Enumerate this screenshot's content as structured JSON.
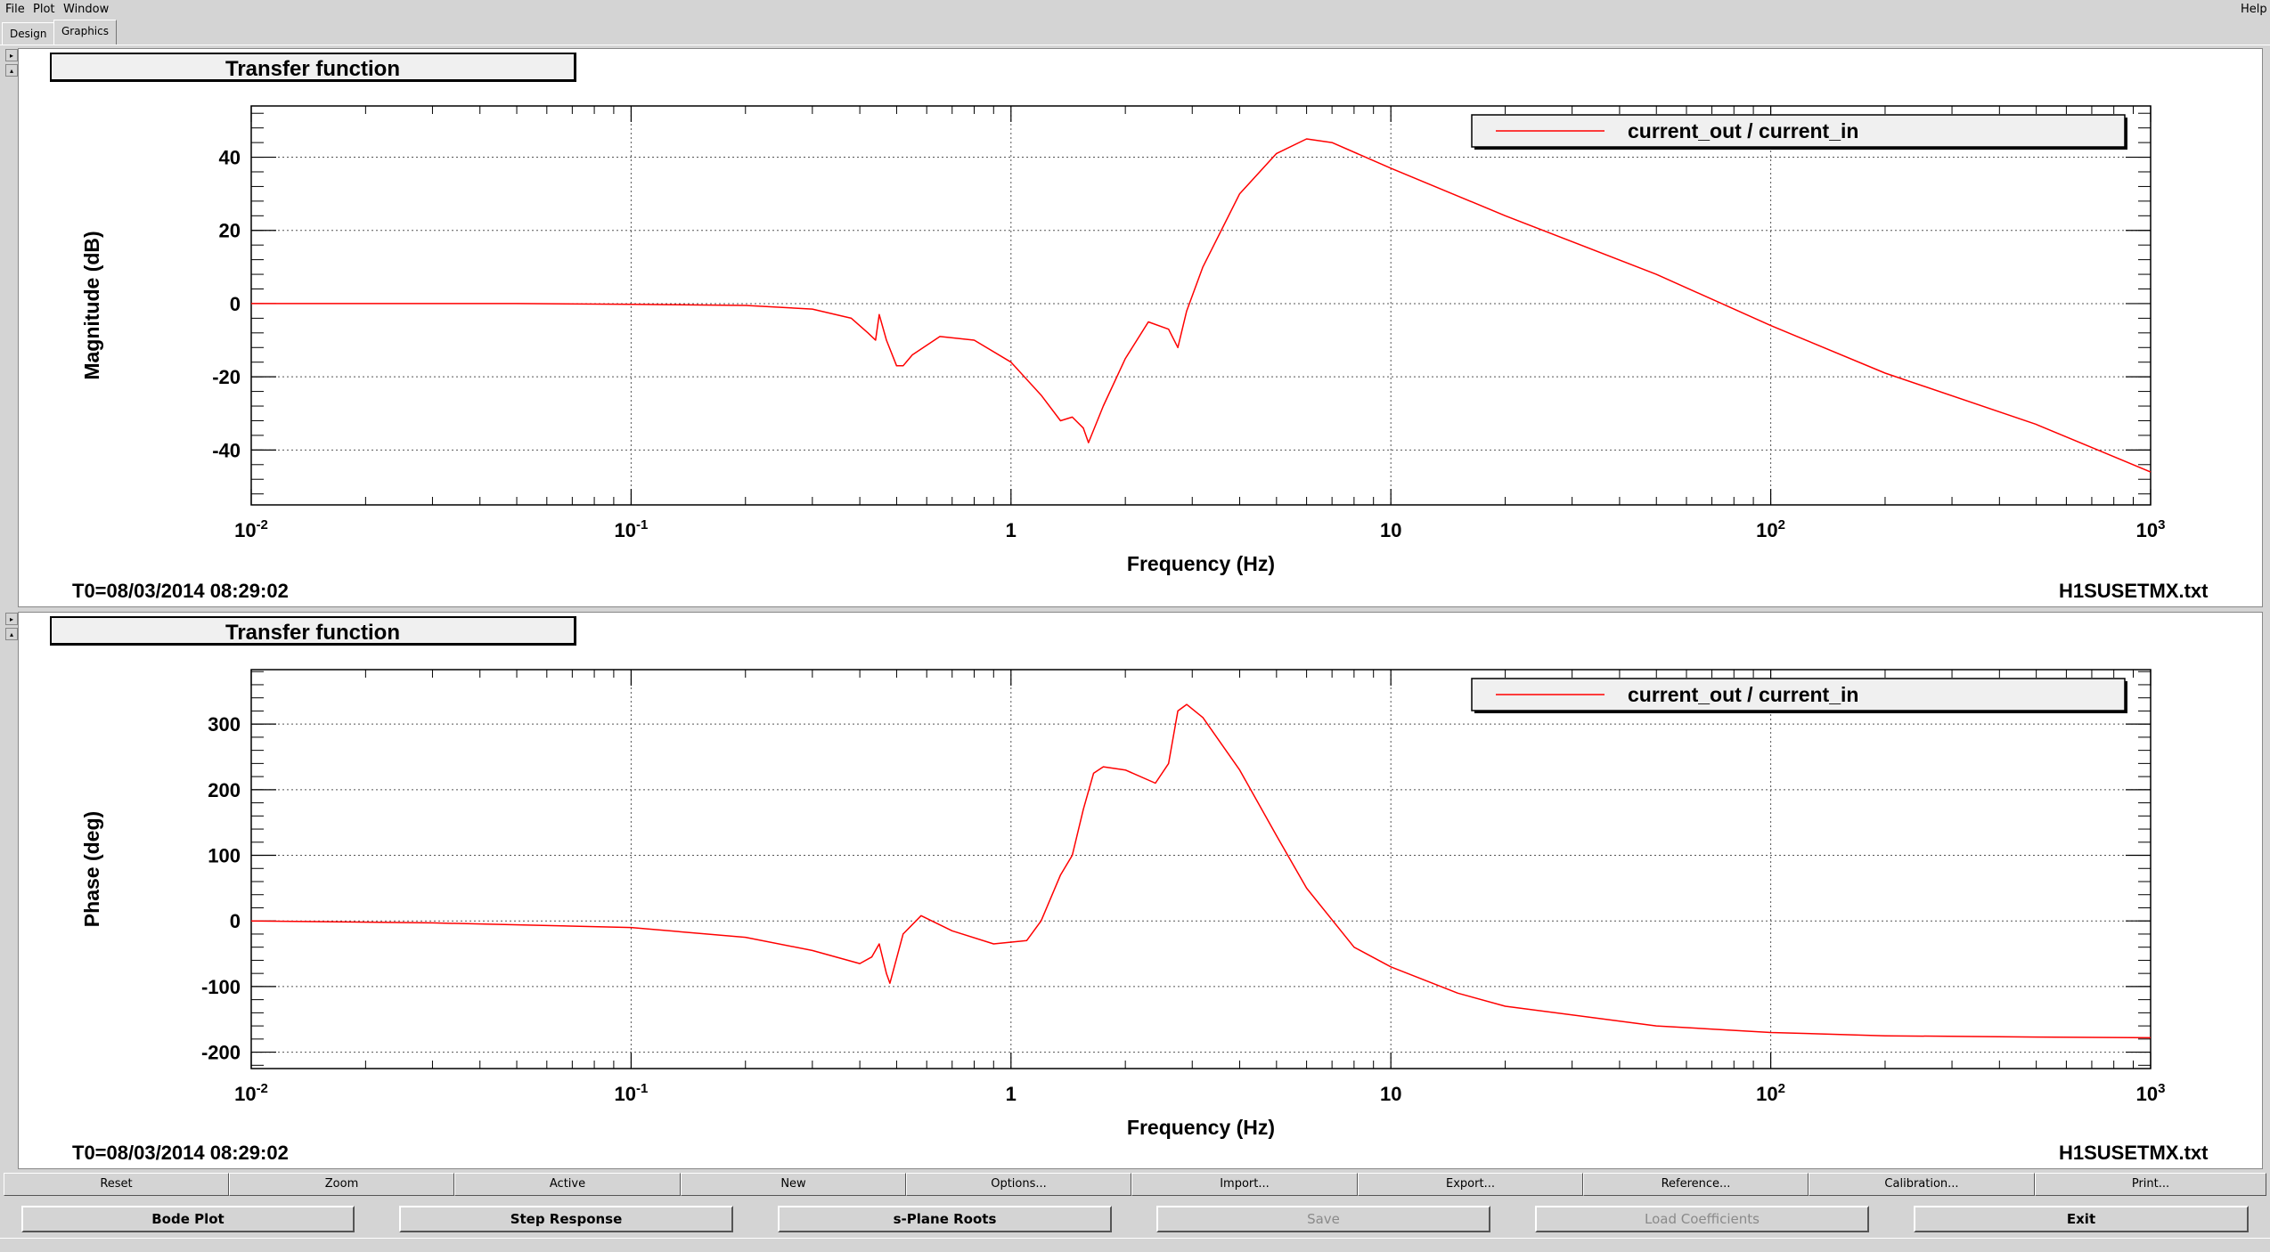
{
  "menu": {
    "file": "File",
    "plot": "Plot",
    "window": "Window",
    "help": "Help"
  },
  "tabs": [
    {
      "label": "Design"
    },
    {
      "label": "Graphics"
    }
  ],
  "colors": {
    "trace": "#ff0000",
    "background": "#d4d4d4",
    "plot_bg": "#ffffff"
  },
  "pane_arrows": {
    "up": "▸",
    "down": "▴"
  },
  "panes": [
    {
      "title": "Transfer function",
      "legend": "current_out / current_in",
      "ylabel": "Magnitude (dB)",
      "xlabel": "Frequency (Hz)",
      "footer_left": "T0=08/03/2014 08:29:02",
      "footer_right": "H1SUSETMX.txt"
    },
    {
      "title": "Transfer function",
      "legend": "current_out / current_in",
      "ylabel": "Phase (deg)",
      "xlabel": "Frequency (Hz)",
      "footer_left": "T0=08/03/2014 08:29:02",
      "footer_right": "H1SUSETMX.txt"
    }
  ],
  "chart_data": [
    {
      "type": "line",
      "title": "Transfer function",
      "xlabel": "Frequency (Hz)",
      "ylabel": "Magnitude (dB)",
      "xscale": "log",
      "xlim": [
        0.01,
        1000
      ],
      "ylim": [
        -55,
        54
      ],
      "xticks": [
        0.01,
        0.1,
        1,
        10,
        100,
        1000
      ],
      "yticks": [
        -40,
        -20,
        0,
        20,
        40
      ],
      "grid": true,
      "legend": "top-right",
      "series": [
        {
          "name": "current_out / current_in",
          "x": [
            0.01,
            0.05,
            0.1,
            0.2,
            0.3,
            0.38,
            0.42,
            0.44,
            0.45,
            0.47,
            0.5,
            0.52,
            0.55,
            0.65,
            0.8,
            1.0,
            1.2,
            1.35,
            1.45,
            1.55,
            1.6,
            1.75,
            2.0,
            2.3,
            2.6,
            2.75,
            2.9,
            3.2,
            4.0,
            5.0,
            6.0,
            7.0,
            10,
            20,
            50,
            100,
            200,
            500,
            1000
          ],
          "y": [
            0,
            0,
            -0.2,
            -0.5,
            -1.5,
            -4,
            -8,
            -10,
            -3,
            -10,
            -17,
            -17,
            -14,
            -9,
            -10,
            -16,
            -25,
            -32,
            -31,
            -34,
            -38,
            -28,
            -15,
            -5,
            -7,
            -12,
            -2,
            10,
            30,
            41,
            45,
            44,
            37,
            24,
            8,
            -6,
            -19,
            -33,
            -46
          ]
        }
      ]
    },
    {
      "type": "line",
      "title": "Transfer function",
      "xlabel": "Frequency (Hz)",
      "ylabel": "Phase (deg)",
      "xscale": "log",
      "xlim": [
        0.01,
        1000
      ],
      "ylim": [
        -225,
        383
      ],
      "xticks": [
        0.01,
        0.1,
        1,
        10,
        100,
        1000
      ],
      "yticks": [
        -200,
        -100,
        0,
        100,
        200,
        300
      ],
      "grid": true,
      "legend": "top-right",
      "series": [
        {
          "name": "current_out / current_in",
          "x": [
            0.01,
            0.03,
            0.1,
            0.2,
            0.3,
            0.4,
            0.43,
            0.45,
            0.47,
            0.48,
            0.52,
            0.58,
            0.7,
            0.9,
            1.1,
            1.2,
            1.35,
            1.45,
            1.55,
            1.65,
            1.75,
            2.0,
            2.4,
            2.6,
            2.75,
            2.9,
            3.2,
            4.0,
            5.0,
            6.0,
            8.0,
            10,
            15,
            20,
            50,
            100,
            200,
            500,
            1000
          ],
          "y": [
            0,
            -3,
            -10,
            -25,
            -45,
            -65,
            -55,
            -35,
            -80,
            -95,
            -20,
            8,
            -15,
            -35,
            -30,
            0,
            70,
            100,
            170,
            225,
            235,
            230,
            210,
            240,
            320,
            330,
            310,
            230,
            130,
            50,
            -40,
            -70,
            -110,
            -130,
            -160,
            -170,
            -175,
            -177,
            -178
          ]
        }
      ]
    }
  ],
  "toolbar": {
    "row1": [
      "Reset",
      "Zoom",
      "Active",
      "New",
      "Options...",
      "Import...",
      "Export...",
      "Reference...",
      "Calibration...",
      "Print..."
    ],
    "row2": [
      {
        "label": "Bode Plot",
        "enabled": true
      },
      {
        "label": "Step Response",
        "enabled": true
      },
      {
        "label": "s-Plane Roots",
        "enabled": true
      },
      {
        "label": "Save",
        "enabled": false
      },
      {
        "label": "Load Coefficients",
        "enabled": false
      },
      {
        "label": "Exit",
        "enabled": true
      }
    ]
  }
}
